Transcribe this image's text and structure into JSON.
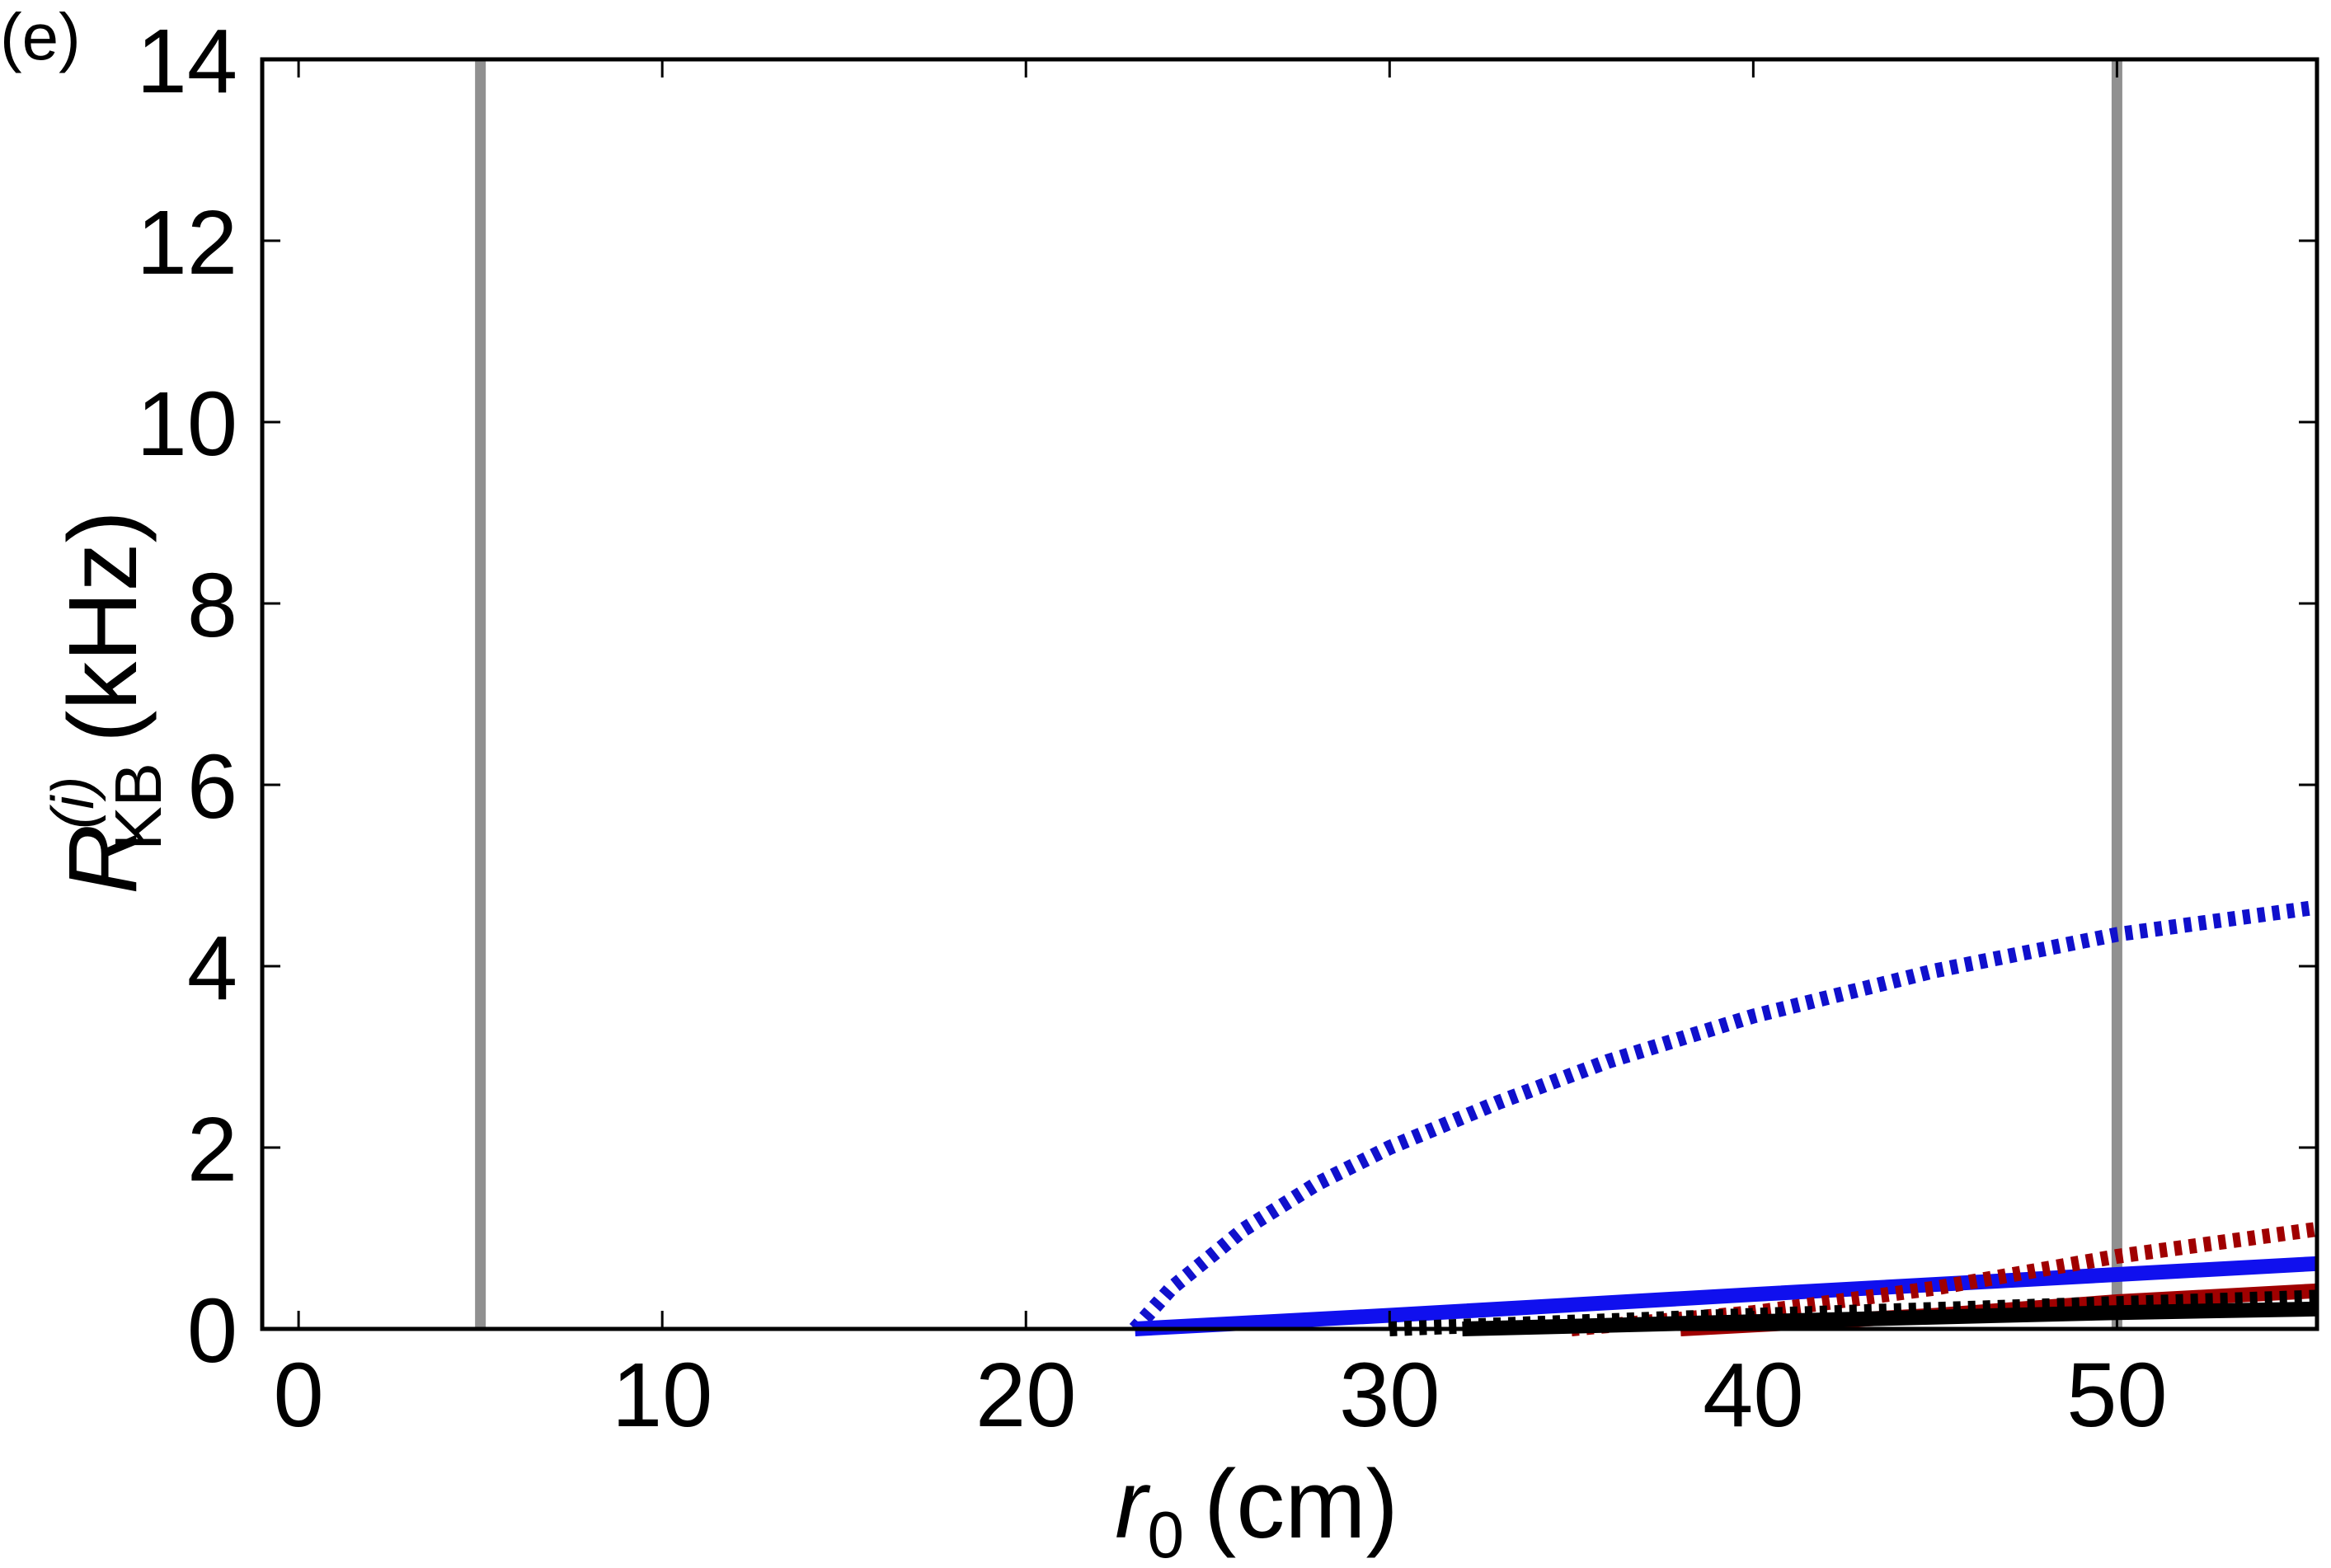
{
  "panel_label": "(e)",
  "chart_data": {
    "type": "line",
    "xlabel": {
      "var": "r",
      "sub": "0",
      "unit": "(cm)"
    },
    "ylabel": {
      "var": "R",
      "sup": "(i)",
      "sub": "KB",
      "unit": "(kHz)"
    },
    "xlim": [
      -1.0,
      55.5
    ],
    "ylim": [
      0,
      14
    ],
    "xticks": [
      "0",
      "10",
      "20",
      "30",
      "40",
      "50"
    ],
    "yticks": [
      "0",
      "2",
      "4",
      "6",
      "8",
      "10",
      "12",
      "14"
    ],
    "grid": false,
    "legend": "none",
    "reference_lines": [
      {
        "x": 5,
        "color": "#909090"
      },
      {
        "x": 50,
        "color": "#909090"
      }
    ],
    "series": [
      {
        "color": "#1010cc",
        "style": "dotted",
        "x": [
          23,
          24,
          26,
          28,
          30,
          33,
          36,
          40,
          45,
          50,
          55.5
        ],
        "y": [
          0.0,
          0.45,
          1.1,
          1.6,
          2.0,
          2.5,
          2.95,
          3.45,
          3.95,
          4.35,
          4.65
        ]
      },
      {
        "color": "#1010ee",
        "style": "solid",
        "x": [
          23,
          30,
          40,
          50,
          55.5
        ],
        "y": [
          0.0,
          0.15,
          0.38,
          0.6,
          0.72
        ]
      },
      {
        "color": "#a00000",
        "style": "dotted",
        "x": [
          35,
          40,
          45,
          50,
          55.5
        ],
        "y": [
          0.0,
          0.18,
          0.45,
          0.8,
          1.1
        ]
      },
      {
        "color": "#a00000",
        "style": "solid",
        "x": [
          38,
          45,
          50,
          55.5
        ],
        "y": [
          0.0,
          0.15,
          0.3,
          0.42
        ]
      },
      {
        "color": "#000000",
        "style": "dotted",
        "x": [
          30,
          40,
          50,
          55.5
        ],
        "y": [
          0.0,
          0.15,
          0.28,
          0.35
        ]
      },
      {
        "color": "#000000",
        "style": "solid",
        "x": [
          32,
          40,
          50,
          55.5
        ],
        "y": [
          0.0,
          0.08,
          0.18,
          0.22
        ]
      }
    ]
  }
}
